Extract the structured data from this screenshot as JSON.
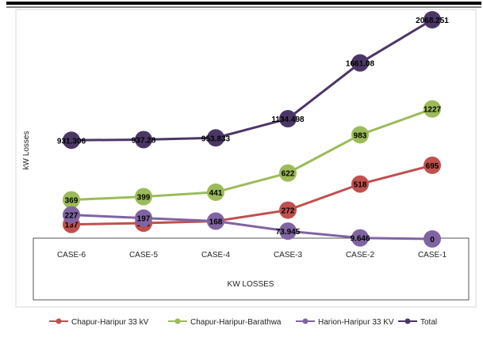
{
  "chart_data": {
    "type": "line",
    "title": "",
    "ylabel": "kW Losses",
    "xlabel": "KW LOSSES",
    "categories": [
      "CASE-6",
      "CASE-5",
      "CASE-4",
      "CASE-3",
      "CASE-2",
      "CASE-1"
    ],
    "grid": false,
    "legend_position": "bottom",
    "series": [
      {
        "name": "Chapur-Haripur 33 kV",
        "color": "#c0504d",
        "values": [
          137,
          149,
          168,
          272,
          518,
          695
        ],
        "labels": [
          "137",
          "149",
          "168",
          "272",
          "518",
          "695"
        ]
      },
      {
        "name": "Chapur-Haripur-Barathwa",
        "color": "#9bbb59",
        "values": [
          369,
          399,
          441,
          622,
          983,
          1227
        ],
        "labels": [
          "369",
          "399",
          "441",
          "622",
          "983",
          "1227"
        ]
      },
      {
        "name": "Harion-Haripur 33 KV",
        "color": "#8064a2",
        "values": [
          227,
          197,
          168,
          73.945,
          9.646,
          0
        ],
        "labels": [
          "227",
          "197",
          "168",
          "73.945",
          "9.646",
          "0"
        ]
      },
      {
        "name": "Total",
        "color": "#4b3766",
        "values": [
          931.306,
          937.28,
          953.833,
          1134.498,
          1661.08,
          2068.251
        ],
        "labels": [
          "931.306",
          "937.28",
          "953.833",
          "1134.498",
          "1661.08",
          "2068.251"
        ]
      }
    ]
  }
}
